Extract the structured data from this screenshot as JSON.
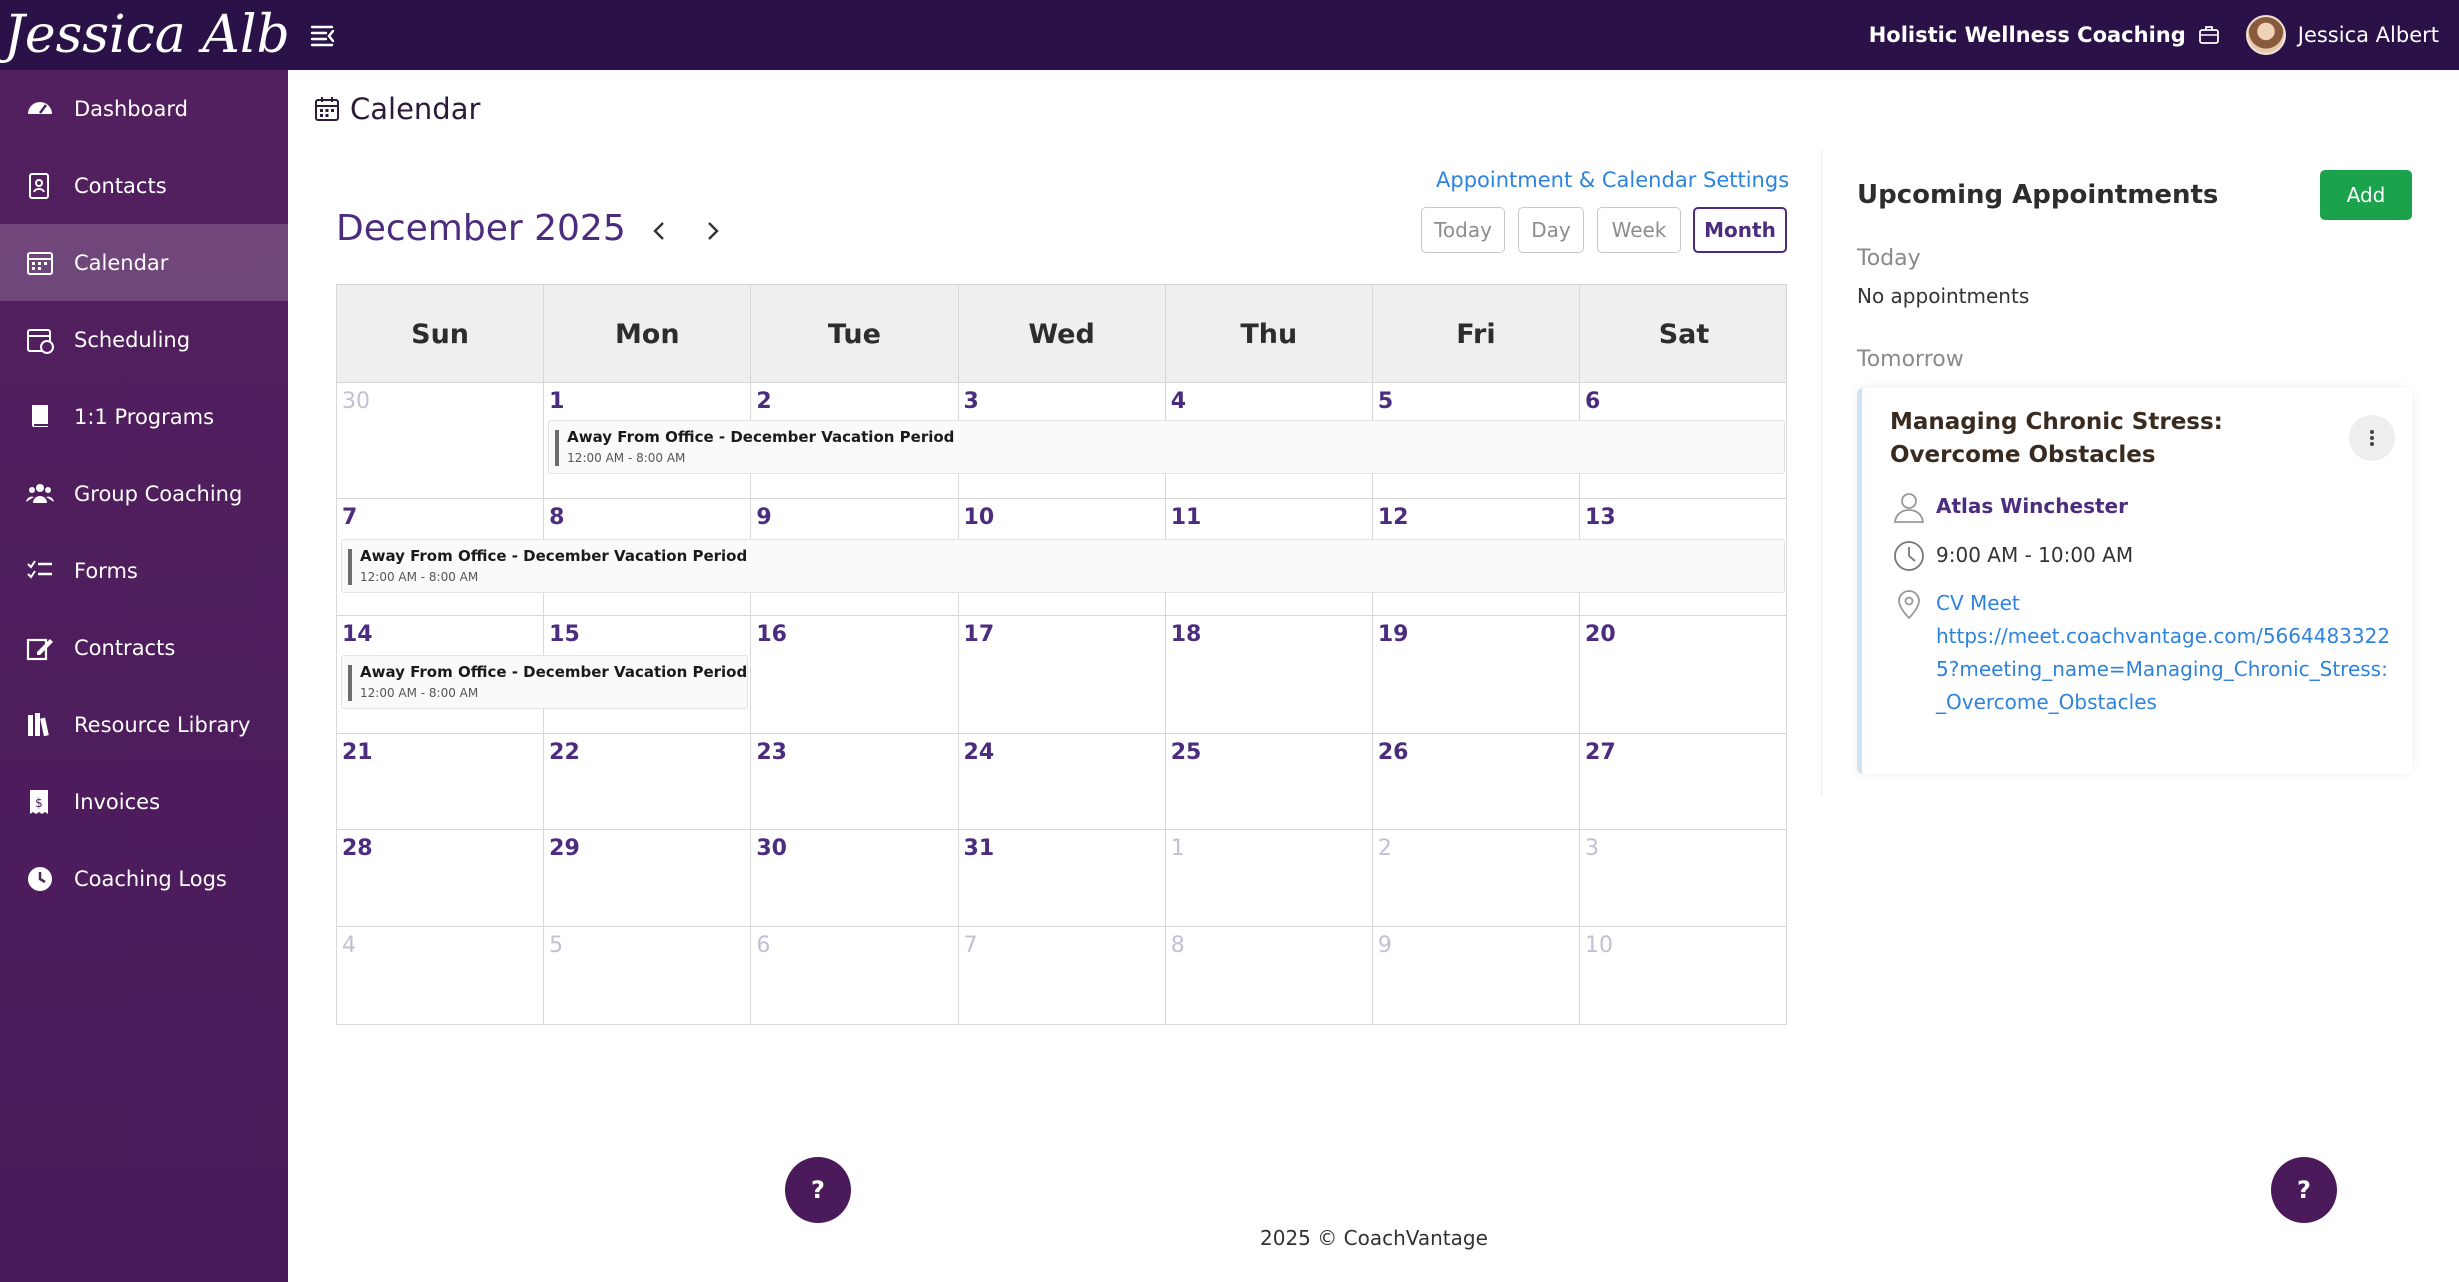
{
  "brand": {
    "name": "Jessica Albert"
  },
  "topbar": {
    "business_name": "Holistic Wellness Coaching",
    "user_name": "Jessica Albert"
  },
  "sidebar": {
    "items": [
      {
        "label": "Dashboard",
        "icon": "dashboard-icon"
      },
      {
        "label": "Contacts",
        "icon": "contacts-icon"
      },
      {
        "label": "Calendar",
        "icon": "calendar-icon",
        "active": true
      },
      {
        "label": "Scheduling",
        "icon": "scheduling-icon"
      },
      {
        "label": "1:1 Programs",
        "icon": "book-icon"
      },
      {
        "label": "Group Coaching",
        "icon": "group-icon"
      },
      {
        "label": "Forms",
        "icon": "forms-icon"
      },
      {
        "label": "Contracts",
        "icon": "contracts-icon"
      },
      {
        "label": "Resource Library",
        "icon": "library-icon"
      },
      {
        "label": "Invoices",
        "icon": "invoice-icon"
      },
      {
        "label": "Coaching Logs",
        "icon": "clock-icon"
      }
    ]
  },
  "page": {
    "title": "Calendar"
  },
  "calendar": {
    "settings_link": "Appointment & Calendar Settings",
    "month_title": "December 2025",
    "views": [
      "Today",
      "Day",
      "Week",
      "Month"
    ],
    "active_view": "Month",
    "days_of_week": [
      "Sun",
      "Mon",
      "Tue",
      "Wed",
      "Thu",
      "Fri",
      "Sat"
    ],
    "weeks": [
      {
        "days": [
          {
            "n": "30",
            "muted": true
          },
          {
            "n": "1"
          },
          {
            "n": "2"
          },
          {
            "n": "3"
          },
          {
            "n": "4"
          },
          {
            "n": "5"
          },
          {
            "n": "6"
          }
        ],
        "events": [
          {
            "start": 1,
            "end": 6,
            "title": "Away From Office - December Vacation Period",
            "time": "12:00 AM - 8:00 AM"
          }
        ]
      },
      {
        "days": [
          {
            "n": "7"
          },
          {
            "n": "8"
          },
          {
            "n": "9"
          },
          {
            "n": "10"
          },
          {
            "n": "11"
          },
          {
            "n": "12"
          },
          {
            "n": "13"
          }
        ],
        "events": [
          {
            "start": 0,
            "end": 6,
            "title": "Away From Office - December Vacation Period",
            "time": "12:00 AM - 8:00 AM"
          }
        ]
      },
      {
        "days": [
          {
            "n": "14"
          },
          {
            "n": "15"
          },
          {
            "n": "16"
          },
          {
            "n": "17"
          },
          {
            "n": "18"
          },
          {
            "n": "19"
          },
          {
            "n": "20"
          }
        ],
        "events": [
          {
            "start": 0,
            "end": 1,
            "title": "Away From Office - December Vacation Period",
            "time": "12:00 AM - 8:00 AM"
          }
        ]
      },
      {
        "days": [
          {
            "n": "21"
          },
          {
            "n": "22"
          },
          {
            "n": "23"
          },
          {
            "n": "24"
          },
          {
            "n": "25"
          },
          {
            "n": "26"
          },
          {
            "n": "27"
          }
        ],
        "events": []
      },
      {
        "days": [
          {
            "n": "28"
          },
          {
            "n": "29"
          },
          {
            "n": "30"
          },
          {
            "n": "31"
          },
          {
            "n": "1",
            "muted": true
          },
          {
            "n": "2",
            "muted": true
          },
          {
            "n": "3",
            "muted": true
          }
        ],
        "events": []
      },
      {
        "days": [
          {
            "n": "4",
            "muted": true
          },
          {
            "n": "5",
            "muted": true
          },
          {
            "n": "6",
            "muted": true
          },
          {
            "n": "7",
            "muted": true
          },
          {
            "n": "8",
            "muted": true
          },
          {
            "n": "9",
            "muted": true
          },
          {
            "n": "10",
            "muted": true
          }
        ],
        "events": []
      }
    ]
  },
  "upcoming": {
    "title": "Upcoming Appointments",
    "add_label": "Add",
    "today_label": "Today",
    "today_empty": "No appointments",
    "tomorrow_label": "Tomorrow",
    "appointment": {
      "title": "Managing Chronic Stress: Overcome Obstacles",
      "contact": "Atlas Winchester",
      "time": "9:00 AM - 10:00 AM",
      "location": "CV Meet",
      "url": "https://meet.coachvantage.com/56644833225?meeting_name=Managing_Chronic_Stress:_Overcome_Obstacles"
    }
  },
  "help": {
    "label": "?"
  },
  "footer": {
    "text": "2025 © CoachVantage"
  },
  "colors": {
    "topbar": "#2a1248",
    "sidebar": "#53205f",
    "accent": "#4b2c7f",
    "link": "#2e83dc",
    "add_button": "#1aa34a"
  }
}
